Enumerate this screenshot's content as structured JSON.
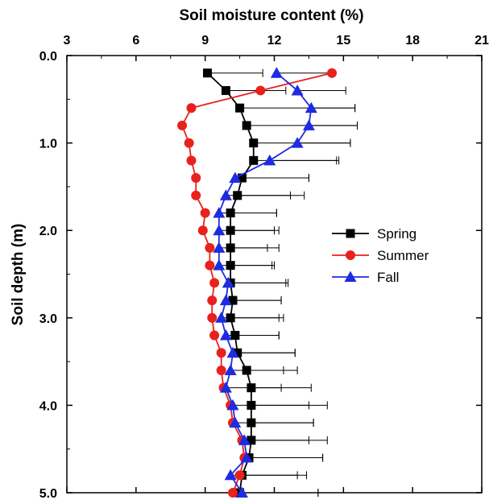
{
  "chart_data": {
    "type": "line",
    "title": "",
    "xlabel": "Soil moisture content (%)",
    "ylabel": "Soil depth (m)",
    "xlim": [
      3,
      21
    ],
    "ylim": [
      0.0,
      5.0
    ],
    "y_inverted": true,
    "x_axis_position": "top",
    "x_ticks": [
      3,
      6,
      9,
      12,
      15,
      18,
      21
    ],
    "x_tick_labels": [
      "3",
      "6",
      "9",
      "12",
      "15",
      "18",
      "21"
    ],
    "y_ticks": [
      0.0,
      1.0,
      2.0,
      3.0,
      4.0,
      5.0
    ],
    "y_tick_labels": [
      "0.0",
      "1.0",
      "2.0",
      "3.0",
      "4.0",
      "5.0"
    ],
    "grid": false,
    "legend_position": "right-middle",
    "error_bars": "horizontal, right side only",
    "depths": [
      0.2,
      0.4,
      0.6,
      0.8,
      1.0,
      1.2,
      1.4,
      1.6,
      1.8,
      2.0,
      2.2,
      2.4,
      2.6,
      2.8,
      3.0,
      3.2,
      3.4,
      3.6,
      3.8,
      4.0,
      4.2,
      4.4,
      4.6,
      4.8,
      5.0
    ],
    "series": [
      {
        "name": "Spring",
        "color": "#000000",
        "marker": "square",
        "values": [
          9.1,
          9.9,
          10.5,
          10.8,
          11.1,
          11.1,
          10.6,
          10.4,
          10.1,
          10.1,
          10.1,
          10.1,
          10.1,
          10.2,
          10.1,
          10.3,
          10.4,
          10.8,
          11.0,
          11.0,
          11.0,
          11.0,
          10.9,
          10.6,
          10.5
        ],
        "error_plus": [
          2.4,
          2.6,
          5.0,
          4.8,
          4.2,
          3.7,
          2.9,
          2.9,
          2.0,
          1.9,
          2.1,
          1.9,
          2.5,
          2.1,
          2.3,
          1.9,
          2.5,
          1.6,
          2.6,
          2.5,
          2.7,
          2.5,
          3.2,
          2.4,
          3.4
        ]
      },
      {
        "name": "Summer",
        "color": "#e8211c",
        "marker": "circle",
        "values": [
          14.5,
          11.4,
          8.4,
          8.0,
          8.3,
          8.4,
          8.6,
          8.6,
          9.0,
          8.9,
          9.2,
          9.2,
          9.4,
          9.3,
          9.3,
          9.4,
          9.7,
          9.7,
          9.8,
          10.1,
          10.2,
          10.6,
          10.7,
          10.5,
          10.2
        ],
        "error_plus": [
          null,
          null,
          null,
          null,
          null,
          null,
          null,
          null,
          null,
          null,
          null,
          null,
          null,
          null,
          null,
          null,
          null,
          null,
          null,
          null,
          null,
          null,
          null,
          null,
          null
        ]
      },
      {
        "name": "Fall",
        "color": "#1e2be0",
        "marker": "triangle",
        "values": [
          12.1,
          13.0,
          13.6,
          13.5,
          13.0,
          11.8,
          10.3,
          9.9,
          9.6,
          9.6,
          9.6,
          9.6,
          10.0,
          9.9,
          9.7,
          9.9,
          10.2,
          10.1,
          9.9,
          10.2,
          10.3,
          10.7,
          10.8,
          10.1,
          10.6
        ],
        "error_plus": [
          2.4,
          2.1,
          1.9,
          2.1,
          2.3,
          2.9,
          3.2,
          2.8,
          2.5,
          2.6,
          2.1,
          2.3,
          2.5,
          2.4,
          2.5,
          2.3,
          2.7,
          2.9,
          2.4,
          4.1,
          3.4,
          3.6,
          3.3,
          3.3,
          3.3
        ]
      }
    ]
  }
}
